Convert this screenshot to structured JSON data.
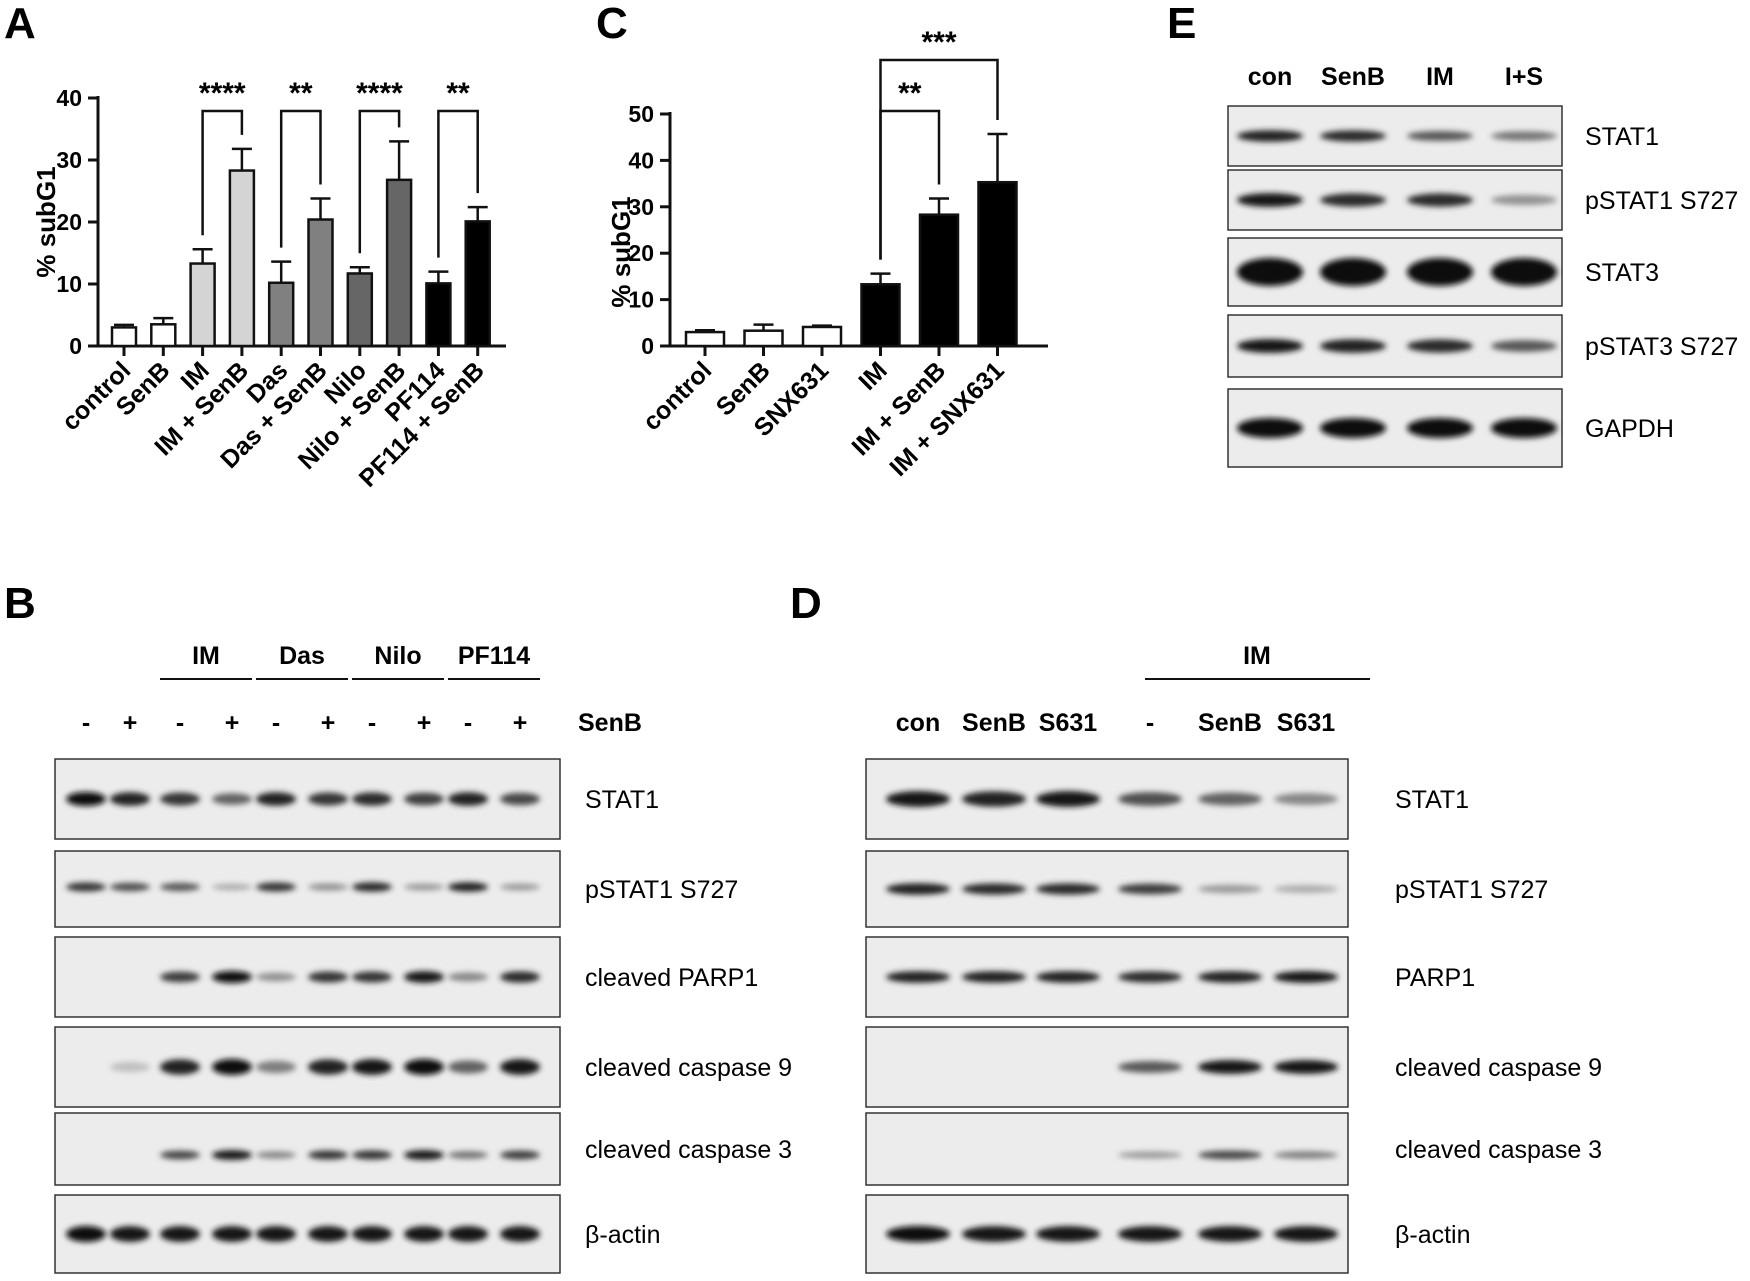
{
  "panel_letters": [
    "A",
    "B",
    "C",
    "D",
    "E"
  ],
  "chart_data": [
    {
      "type": "bar",
      "panel": "A",
      "ylabel": "% subG1",
      "ylim": [
        0,
        40
      ],
      "yticks": [
        0,
        10,
        20,
        30,
        40
      ],
      "categories": [
        "control",
        "SenB",
        "IM",
        "IM + SenB",
        "Das",
        "Das + SenB",
        "Nilo",
        "Nilo + SenB",
        "PF114",
        "PF114 + SenB"
      ],
      "values": [
        3,
        3.5,
        13.3,
        28.3,
        10.2,
        20.4,
        11.7,
        26.8,
        10.1,
        20.1
      ],
      "errors": [
        0.4,
        1.0,
        2.3,
        3.5,
        3.4,
        3.4,
        1.0,
        6.2,
        1.9,
        2.3
      ],
      "bar_colors": [
        "#ffffff",
        "#ffffff",
        "#d4d4d4",
        "#d4d4d4",
        "#808080",
        "#808080",
        "#666666",
        "#666666",
        "#000000",
        "#000000"
      ],
      "significance": [
        {
          "from": "IM",
          "to": "IM + SenB",
          "label": "****"
        },
        {
          "from": "Das",
          "to": "Das + SenB",
          "label": "**"
        },
        {
          "from": "Nilo",
          "to": "Nilo + SenB",
          "label": "****"
        },
        {
          "from": "PF114",
          "to": "PF114 + SenB",
          "label": "**"
        }
      ]
    },
    {
      "type": "bar",
      "panel": "C",
      "ylabel": "% subG1",
      "ylim": [
        0,
        50
      ],
      "yticks": [
        0,
        10,
        20,
        30,
        40,
        50
      ],
      "categories": [
        "control",
        "SenB",
        "SNX631",
        "IM",
        "IM + SenB",
        "IM + SNX631"
      ],
      "values": [
        3,
        3.3,
        4.1,
        13.3,
        28.3,
        35.3
      ],
      "errors": [
        0.4,
        1.3,
        0.3,
        2.3,
        3.5,
        10.4
      ],
      "bar_colors": [
        "#ffffff",
        "#ffffff",
        "#ffffff",
        "#000000",
        "#000000",
        "#000000"
      ],
      "significance": [
        {
          "from": "IM",
          "to": "IM + SenB",
          "label": "**"
        },
        {
          "from": "IM",
          "to": "IM + SNX631",
          "label": "***"
        }
      ]
    }
  ],
  "western_blots": {
    "B": {
      "groups": [
        "IM",
        "Das",
        "Nilo",
        "PF114"
      ],
      "row_label": "SenB",
      "signs": [
        "-",
        "+",
        "-",
        "+",
        "-",
        "+",
        "-",
        "+",
        "-",
        "+"
      ],
      "rows": [
        {
          "label": "STAT1",
          "intensity": [
            1.0,
            0.9,
            0.8,
            0.55,
            0.9,
            0.8,
            0.85,
            0.75,
            0.9,
            0.7
          ]
        },
        {
          "label": "pSTAT1 S727",
          "intensity": [
            0.8,
            0.65,
            0.6,
            0.15,
            0.8,
            0.3,
            0.85,
            0.25,
            0.9,
            0.25
          ]
        },
        {
          "label": "cleaved PARP1",
          "intensity": [
            0,
            0,
            0.75,
            1.0,
            0.3,
            0.8,
            0.8,
            0.95,
            0.35,
            0.85
          ]
        },
        {
          "label": "cleaved caspase 9",
          "intensity": [
            0,
            0.05,
            0.9,
            1.0,
            0.4,
            0.9,
            0.95,
            1.0,
            0.55,
            0.95
          ]
        },
        {
          "label": "cleaved caspase 3",
          "intensity": [
            0,
            0,
            0.7,
            0.95,
            0.35,
            0.8,
            0.8,
            0.95,
            0.45,
            0.75
          ]
        },
        {
          "label": "β-actin",
          "intensity": [
            1.0,
            0.95,
            0.95,
            0.95,
            0.95,
            0.95,
            0.95,
            0.95,
            0.95,
            0.95
          ]
        }
      ]
    },
    "D": {
      "group": "IM",
      "lanes": [
        "con",
        "SenB",
        "S631",
        "-",
        "SenB",
        "S631"
      ],
      "rows": [
        {
          "label": "STAT1",
          "intensity": [
            0.95,
            0.9,
            0.95,
            0.65,
            0.55,
            0.35
          ]
        },
        {
          "label": "pSTAT1 S727",
          "intensity": [
            0.9,
            0.85,
            0.85,
            0.75,
            0.25,
            0.15
          ]
        },
        {
          "label": "PARP1",
          "intensity": [
            0.9,
            0.9,
            0.9,
            0.85,
            0.9,
            0.95
          ]
        },
        {
          "label": "cleaved caspase 9",
          "intensity": [
            0,
            0,
            0,
            0.6,
            0.95,
            0.95
          ]
        },
        {
          "label": "cleaved caspase 3",
          "intensity": [
            0,
            0,
            0,
            0.25,
            0.7,
            0.4
          ]
        },
        {
          "label": "β-actin",
          "intensity": [
            1.0,
            0.95,
            0.95,
            0.95,
            0.95,
            0.95
          ]
        }
      ]
    },
    "E": {
      "lanes": [
        "con",
        "SenB",
        "IM",
        "I+S"
      ],
      "rows": [
        {
          "label": "STAT1",
          "intensity": [
            0.9,
            0.85,
            0.6,
            0.45
          ]
        },
        {
          "label": "pSTAT1 S727",
          "intensity": [
            0.95,
            0.85,
            0.85,
            0.3
          ]
        },
        {
          "label": "STAT3",
          "intensity": [
            1.0,
            1.0,
            1.0,
            1.0
          ]
        },
        {
          "label": "pSTAT3 S727",
          "intensity": [
            0.95,
            0.9,
            0.85,
            0.6
          ]
        },
        {
          "label": "GAPDH",
          "intensity": [
            1.0,
            1.0,
            1.0,
            1.0
          ]
        }
      ]
    }
  }
}
